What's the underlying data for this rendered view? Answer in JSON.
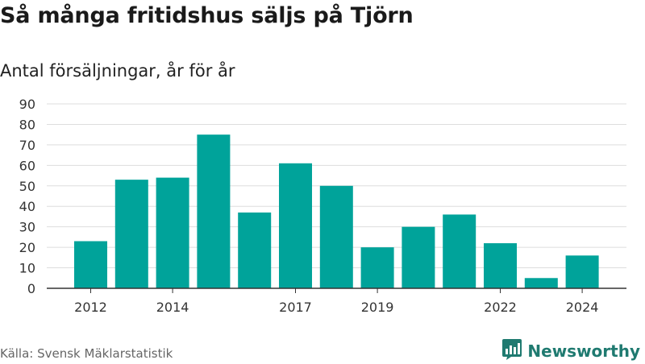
{
  "header": {
    "title": "Så många fritidshus säljs på Tjörn",
    "subtitle": "Antal försäljningar, år för år"
  },
  "footer": {
    "source": "Källa: Svensk Mäklarstatistik",
    "brand": "Newsworthy"
  },
  "colors": {
    "bar": "#00a39a",
    "grid": "#dddddd",
    "axis": "#333333",
    "brand": "#1f7a70"
  },
  "icons": {
    "brand_logo": "bar-chart-logo-icon"
  },
  "chart_data": {
    "type": "bar",
    "title": "Så många fritidshus säljs på Tjörn",
    "subtitle": "Antal försäljningar, år för år",
    "categories": [
      "2012",
      "2013",
      "2014",
      "2015",
      "2016",
      "2017",
      "2018",
      "2019",
      "2020",
      "2021",
      "2022",
      "2023",
      "2024"
    ],
    "values": [
      23,
      53,
      54,
      75,
      37,
      61,
      50,
      20,
      30,
      36,
      22,
      5,
      16
    ],
    "x_tick_labels": [
      "2012",
      "2014",
      "2017",
      "2019",
      "2022",
      "2024"
    ],
    "y_ticks": [
      0,
      10,
      20,
      30,
      40,
      50,
      60,
      70,
      80,
      90
    ],
    "ylim": [
      0,
      90
    ],
    "grid": true,
    "legend": "none"
  }
}
